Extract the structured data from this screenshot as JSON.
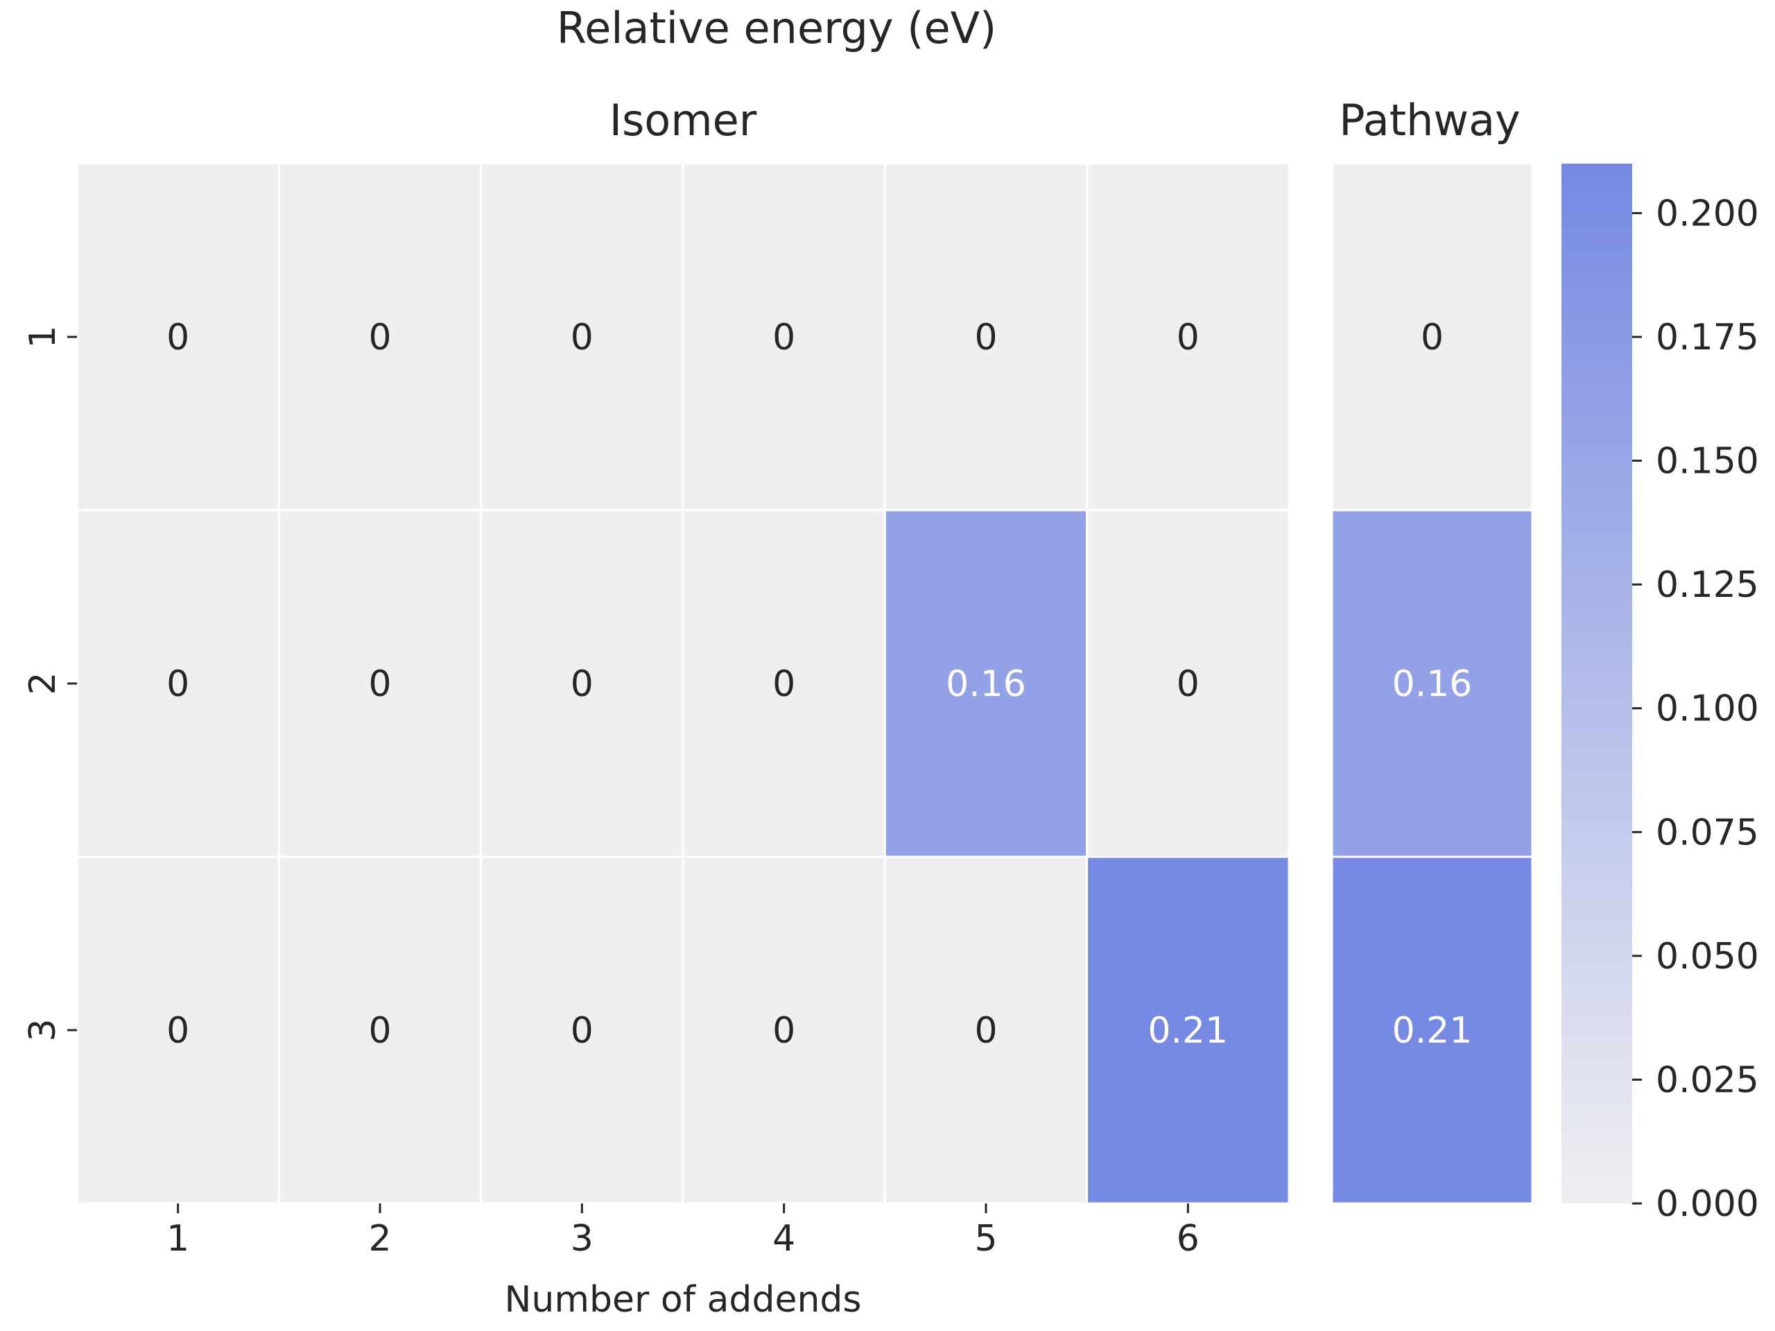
{
  "chart_data": {
    "type": "heatmap",
    "title": "Relative energy (eV)",
    "panels": [
      {
        "title": "Isomer",
        "xlabel": "Number of addends",
        "x_ticks": [
          "1",
          "2",
          "3",
          "4",
          "5",
          "6"
        ],
        "y_ticks": [
          "1",
          "2",
          "3"
        ],
        "values": [
          [
            0,
            0,
            0,
            0,
            0,
            0
          ],
          [
            0,
            0,
            0,
            0,
            0.16,
            0
          ],
          [
            0,
            0,
            0,
            0,
            0,
            0.21
          ]
        ],
        "labels": [
          [
            "0",
            "0",
            "0",
            "0",
            "0",
            "0"
          ],
          [
            "0",
            "0",
            "0",
            "0",
            "0.16",
            "0"
          ],
          [
            "0",
            "0",
            "0",
            "0",
            "0",
            "0.21"
          ]
        ]
      },
      {
        "title": "Pathway",
        "values": [
          [
            0
          ],
          [
            0.16
          ],
          [
            0.21
          ]
        ],
        "labels": [
          [
            "0"
          ],
          [
            "0.16"
          ],
          [
            "0.21"
          ]
        ]
      }
    ],
    "colorbar": {
      "range": [
        0,
        0.21
      ],
      "ticks": [
        0,
        0.025,
        0.05,
        0.075,
        0.1,
        0.125,
        0.15,
        0.175,
        0.2
      ],
      "tick_labels": [
        "0.000",
        "0.025",
        "0.050",
        "0.075",
        "0.100",
        "0.125",
        "0.150",
        "0.175",
        "0.200"
      ]
    },
    "colors": {
      "low": "#efeff1",
      "high": "#7689e3",
      "grid_line": "#ffffff",
      "text_dark": "#262626",
      "text_light": "#ffffff"
    }
  }
}
